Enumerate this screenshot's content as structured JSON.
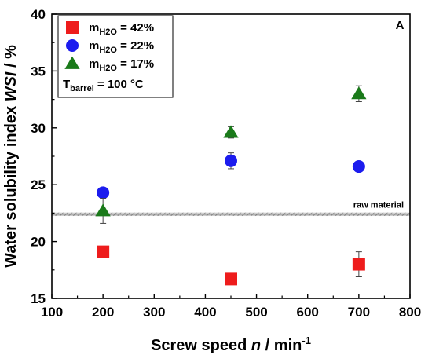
{
  "chart_data": {
    "type": "scatter",
    "panel_label": "A",
    "xlabel": {
      "main": "Screw speed ",
      "var": "n",
      "unit": " / min",
      "sup": "-1"
    },
    "ylabel": {
      "main": "Water solubility index ",
      "var": "WSI",
      "unit": " / %"
    },
    "xlim": [
      100,
      800
    ],
    "ylim": [
      15,
      40
    ],
    "xticks": [
      100,
      200,
      300,
      400,
      500,
      600,
      700,
      800
    ],
    "yticks": [
      15,
      20,
      25,
      30,
      35,
      40
    ],
    "grid": false,
    "legend_position": "top-left",
    "series": [
      {
        "name_main": "m",
        "name_sub": "H2O",
        "name_rest": " = 42%",
        "marker": "square",
        "color": "#ee1c1c",
        "x": [
          200,
          450,
          700
        ],
        "y": [
          19.1,
          16.7,
          18.0
        ],
        "err": [
          0.3,
          0.2,
          1.1
        ]
      },
      {
        "name_main": "m",
        "name_sub": "H2O",
        "name_rest": " = 22%",
        "marker": "circle",
        "color": "#1c1cee",
        "x": [
          200,
          450,
          700
        ],
        "y": [
          24.3,
          27.1,
          26.6
        ],
        "err": [
          0.2,
          0.7,
          0.2
        ]
      },
      {
        "name_main": "m",
        "name_sub": "H2O",
        "name_rest": " = 17%",
        "marker": "triangle",
        "color": "#1a7a1a",
        "x": [
          200,
          450,
          700
        ],
        "y": [
          22.7,
          29.6,
          33.0
        ],
        "err": [
          1.1,
          0.5,
          0.7
        ]
      }
    ],
    "condition": {
      "main": "T",
      "sub": "barrel",
      "rest": " = 100 °C"
    },
    "reference_line": {
      "label": "raw material",
      "y": 22.4,
      "band": [
        22.25,
        22.55
      ]
    }
  }
}
